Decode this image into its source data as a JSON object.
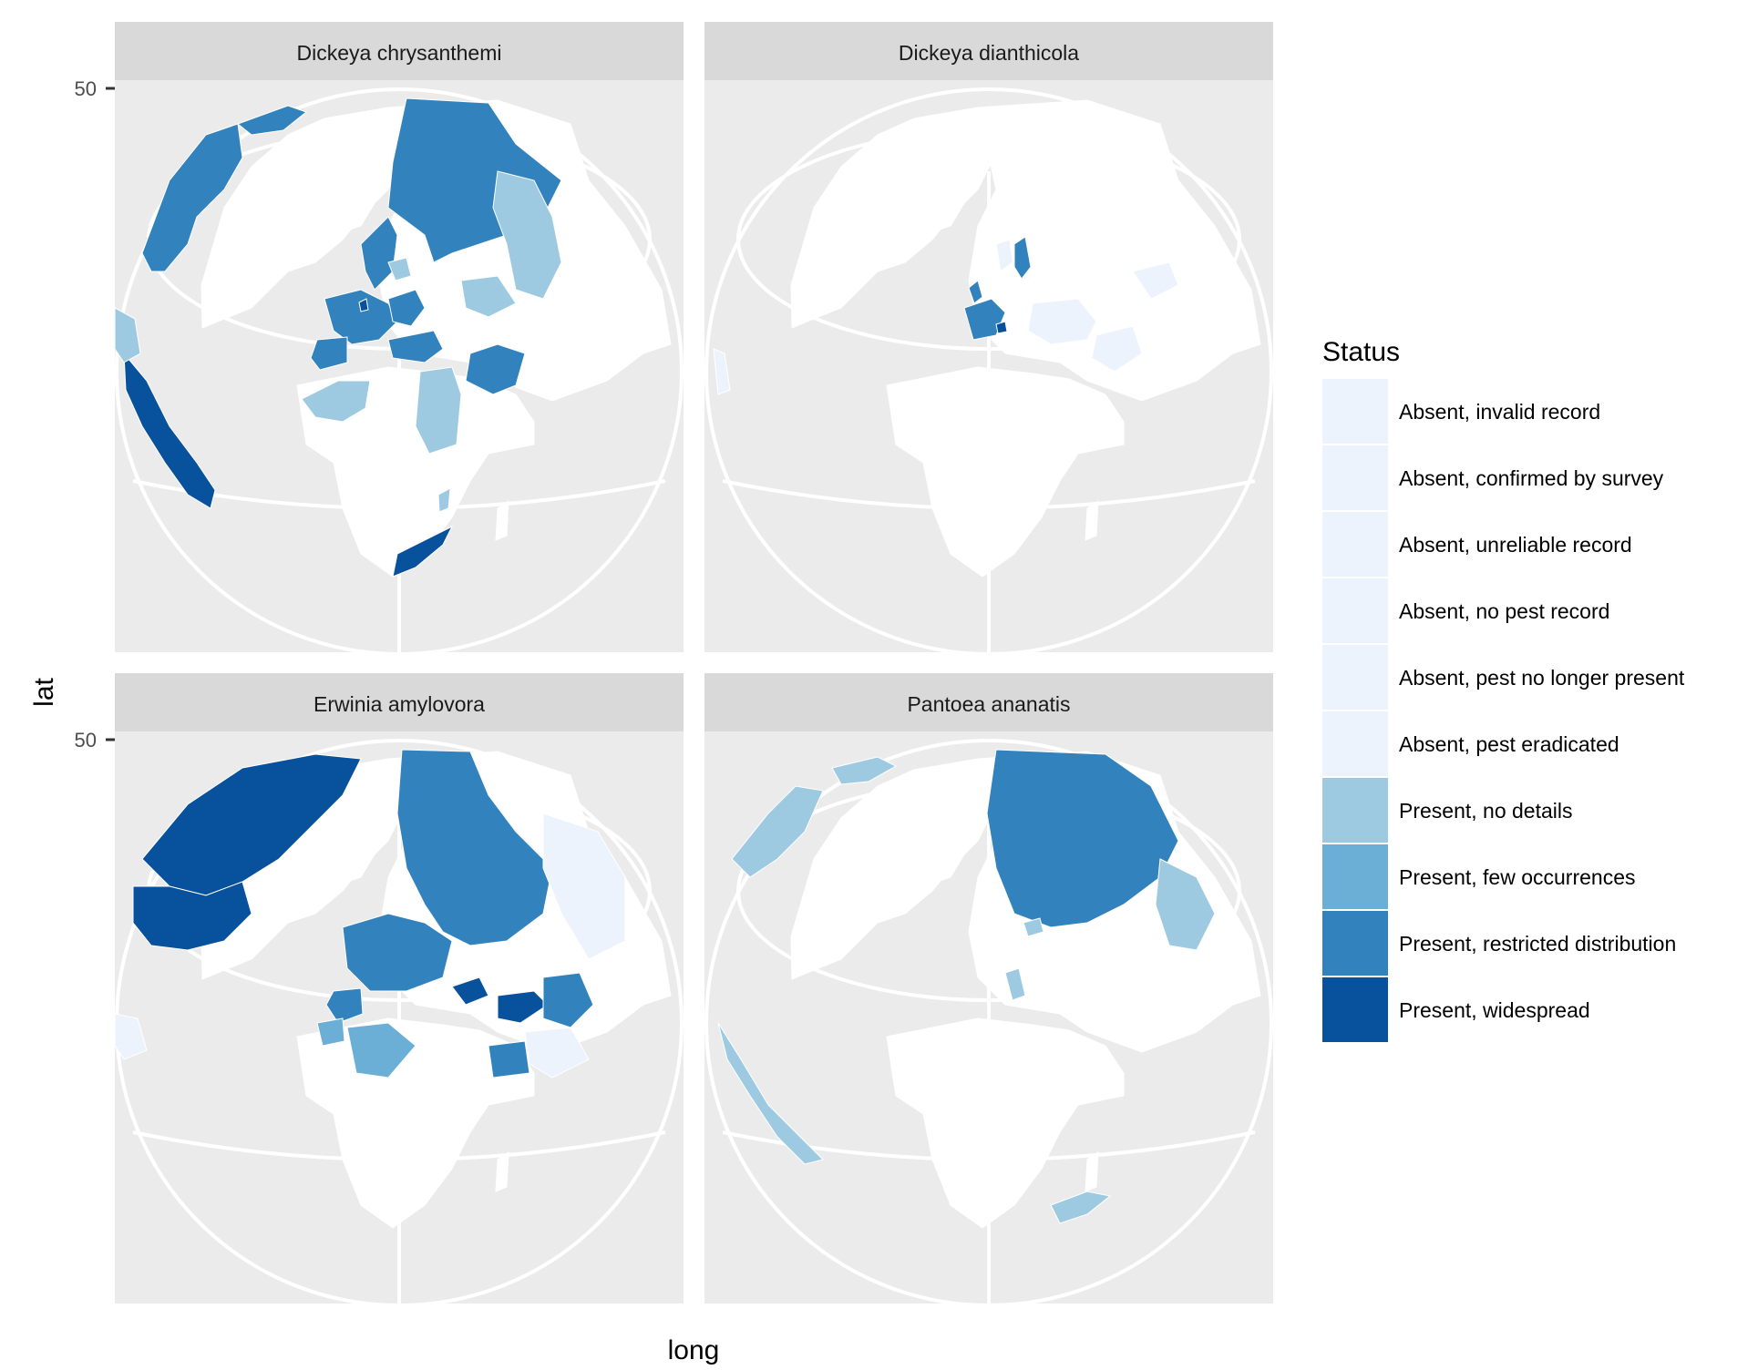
{
  "map": {
    "y_axis_title": "lat",
    "x_axis_title": "long",
    "y_tick_label": "50",
    "panels": [
      {
        "title": "Dickeya chrysanthemi",
        "regions": [
          {
            "name": "Canada",
            "status": "Present, restricted distribution"
          },
          {
            "name": "Alaska",
            "status": "Present, restricted distribution"
          },
          {
            "name": "Russia",
            "status": "Present, restricted distribution"
          },
          {
            "name": "Scandinavia",
            "status": "Present, restricted distribution"
          },
          {
            "name": "Western Europe",
            "status": "Present, restricted distribution"
          },
          {
            "name": "Iberia",
            "status": "Present, restricted distribution"
          },
          {
            "name": "Eastern Europe",
            "status": "Present, restricted distribution"
          },
          {
            "name": "Netherlands",
            "status": "Present, widespread"
          },
          {
            "name": "Mexico and California",
            "status": "Present, widespread"
          },
          {
            "name": "South Africa",
            "status": "Present, widespread"
          },
          {
            "name": "Iran",
            "status": "Present, restricted distribution"
          },
          {
            "name": "Mediterranean",
            "status": "Present, restricted distribution"
          },
          {
            "name": "Central America",
            "status": "Present, no details"
          },
          {
            "name": "Algeria",
            "status": "Present, no details"
          },
          {
            "name": "Egypt and Sudan",
            "status": "Present, no details"
          },
          {
            "name": "China",
            "status": "Present, no details"
          },
          {
            "name": "Kazakhstan",
            "status": "Present, no details"
          },
          {
            "name": "Baltic",
            "status": "Present, no details"
          },
          {
            "name": "Madagascar",
            "status": "Present, no details"
          }
        ]
      },
      {
        "title": "Dickeya dianthicola",
        "regions": [
          {
            "name": "Western Europe",
            "status": "Present, restricted distribution"
          },
          {
            "name": "Great Britain",
            "status": "Present, restricted distribution"
          },
          {
            "name": "Finland",
            "status": "Present, restricted distribution"
          },
          {
            "name": "Romania",
            "status": "Present, restricted distribution"
          },
          {
            "name": "Switzerland",
            "status": "Present, widespread"
          },
          {
            "name": "Eastern Europe",
            "status": "Absent, invalid record"
          },
          {
            "name": "Ukraine",
            "status": "Absent, no pest record"
          },
          {
            "name": "Norway",
            "status": "Absent, confirmed by survey"
          },
          {
            "name": "Central Asia",
            "status": "Absent, unreliable record"
          },
          {
            "name": "Central America",
            "status": "Absent, pest eradicated"
          }
        ]
      },
      {
        "title": "Erwinia amylovora",
        "regions": [
          {
            "name": "Canada",
            "status": "Present, widespread"
          },
          {
            "name": "United States",
            "status": "Present, widespread"
          },
          {
            "name": "Turkey",
            "status": "Present, widespread"
          },
          {
            "name": "Balkans",
            "status": "Present, widespread"
          },
          {
            "name": "Russia",
            "status": "Present, restricted distribution"
          },
          {
            "name": "Europe",
            "status": "Present, restricted distribution"
          },
          {
            "name": "Iran",
            "status": "Present, restricted distribution"
          },
          {
            "name": "Egypt",
            "status": "Present, restricted distribution"
          },
          {
            "name": "Iberia",
            "status": "Present, restricted distribution"
          },
          {
            "name": "Algeria",
            "status": "Present, few occurrences"
          },
          {
            "name": "Morocco",
            "status": "Present, few occurrences"
          },
          {
            "name": "China",
            "status": "Absent, no pest record"
          },
          {
            "name": "Saudi Arabia",
            "status": "Absent, unreliable record"
          },
          {
            "name": "Central America",
            "status": "Absent, pest no longer present"
          }
        ]
      },
      {
        "title": "Pantoea ananatis",
        "regions": [
          {
            "name": "Russia",
            "status": "Present, restricted distribution"
          },
          {
            "name": "Canada",
            "status": "Present, no details"
          },
          {
            "name": "Alaska",
            "status": "Present, no details"
          },
          {
            "name": "China",
            "status": "Present, no details"
          },
          {
            "name": "Poland",
            "status": "Present, no details"
          },
          {
            "name": "Italy",
            "status": "Present, no details"
          },
          {
            "name": "Mexico and California",
            "status": "Present, no details"
          },
          {
            "name": "South Africa",
            "status": "Present, no details"
          }
        ]
      }
    ]
  },
  "legend": {
    "title": "Status",
    "entries": [
      {
        "label": "Absent, invalid record",
        "color": "#edf3fd"
      },
      {
        "label": "Absent, confirmed by survey",
        "color": "#edf3fd"
      },
      {
        "label": "Absent, unreliable record",
        "color": "#edf3fd"
      },
      {
        "label": "Absent, no pest record",
        "color": "#edf3fd"
      },
      {
        "label": "Absent, pest no longer present",
        "color": "#edf3fd"
      },
      {
        "label": "Absent, pest eradicated",
        "color": "#edf3fd"
      },
      {
        "label": "Present, no details",
        "color": "#9ecae1"
      },
      {
        "label": "Present, few occurrences",
        "color": "#6baed6"
      },
      {
        "label": "Present, restricted distribution",
        "color": "#3182bd"
      },
      {
        "label": "Present, widespread",
        "color": "#08519c"
      }
    ]
  }
}
